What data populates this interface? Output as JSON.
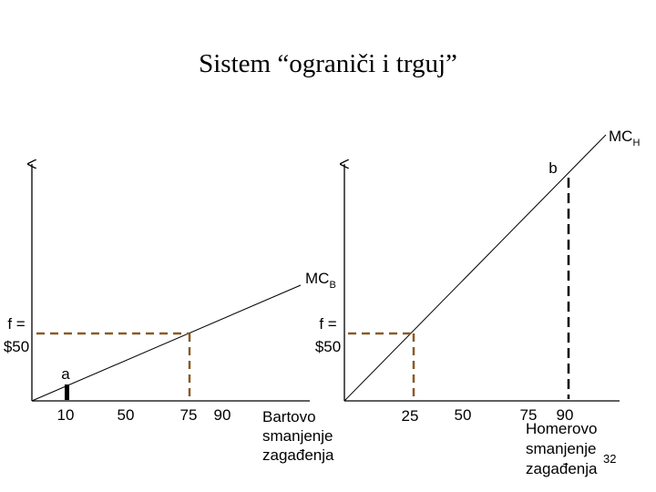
{
  "slide": {
    "title": "Sistem “ograniči i trguj”",
    "page_number": "32"
  },
  "left": {
    "curve_label_main": "MC",
    "curve_label_sub": "B",
    "fee_line1": "f =",
    "fee_line2": "$50",
    "point_label": "a",
    "ticks": [
      "10",
      "50",
      "75",
      "90"
    ],
    "axis_caption": [
      "Bartovo",
      "smanjenje",
      "zagađenja"
    ]
  },
  "right": {
    "curve_label_main": "MC",
    "curve_label_sub": "H",
    "fee_line1": "f =",
    "fee_line2": "$50",
    "point_label": "b",
    "ticks": [
      "25",
      "50",
      "75",
      "90"
    ],
    "axis_caption": [
      "Homerovo",
      "smanjenje",
      "zagađenja"
    ]
  },
  "colors": {
    "axis": "#000000",
    "curve": "#000000",
    "guide_brown": "#8a5a2b",
    "guide_black": "#000000"
  }
}
